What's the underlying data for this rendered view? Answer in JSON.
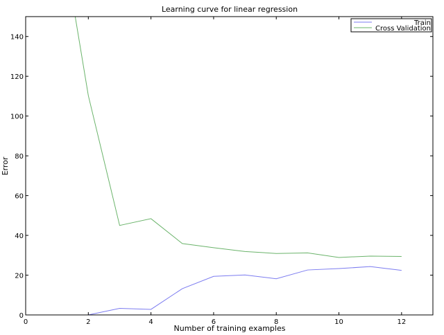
{
  "chart_data": {
    "type": "line",
    "title": "Learning curve for linear regression",
    "xlabel": "Number of training examples",
    "ylabel": "Error",
    "xlim": [
      0,
      13
    ],
    "ylim": [
      0,
      150
    ],
    "xticks": [
      0,
      2,
      4,
      6,
      8,
      10,
      12
    ],
    "yticks": [
      0,
      20,
      40,
      60,
      80,
      100,
      120,
      140
    ],
    "grid": false,
    "legend_position": "top-right",
    "x": [
      1,
      2,
      3,
      4,
      5,
      6,
      7,
      8,
      9,
      10,
      11,
      12
    ],
    "series": [
      {
        "name": "Train",
        "color": "#7b7bf0",
        "values": [
          0.0,
          0.0,
          3.3,
          2.8,
          13.2,
          19.4,
          20.1,
          18.2,
          22.6,
          23.3,
          24.3,
          22.4
        ]
      },
      {
        "name": "Cross Validation",
        "color": "#6ab36a",
        "values": [
          205.1,
          110.3,
          45.0,
          48.4,
          35.9,
          33.8,
          31.9,
          30.9,
          31.2,
          28.9,
          29.6,
          29.4
        ]
      }
    ]
  }
}
